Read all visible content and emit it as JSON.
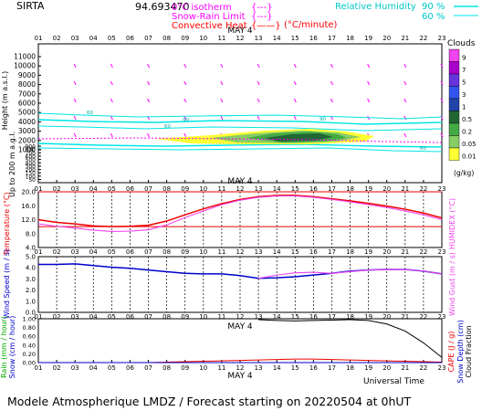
{
  "header": {
    "site": "SIRTA",
    "code": "94.693470",
    "legend": [
      {
        "label": "0°C isotherm",
        "sym": "{---}",
        "color": "#ff00ff"
      },
      {
        "label": "Snow-Rain Limit",
        "sym": "{---}",
        "color": "#ff00ff"
      },
      {
        "label": "Convective Heat",
        "sym": "{——}",
        "color": "#ff0000"
      }
    ],
    "convective_unit": "(°C/minute)",
    "rh_label": "Relative Humidity",
    "rh_levels": [
      "90 %",
      "60 %"
    ],
    "rh_color": "#00e5e5"
  },
  "hours": [
    "01",
    "02",
    "03",
    "04",
    "05",
    "06",
    "07",
    "08",
    "09",
    "10",
    "11",
    "12",
    "13",
    "14",
    "15",
    "16",
    "17",
    "18",
    "19",
    "20",
    "21",
    "22",
    "23"
  ],
  "date_label": "MAY 4",
  "footer": {
    "time_label": "Universal Time",
    "caption": "Modele Atmospherique LMDZ / Forecast starting on 20220504 at 0hUT"
  },
  "clouds_legend": {
    "title": "Clouds",
    "unit": "(g/kg)",
    "levels": [
      "9",
      "7",
      "5",
      "3",
      "1",
      "0.5",
      "0.2",
      "0.05",
      "0.01"
    ],
    "colors": [
      "#ee44ee",
      "#aa00cc",
      "#6633dd",
      "#3355ee",
      "#2244aa",
      "#226633",
      "#44aa44",
      "#88cc66",
      "#ffff33"
    ]
  },
  "chart_data": [
    {
      "type": "heatmap",
      "panel": "clouds",
      "ylabel": "Height (m a.s.l.)",
      "ylabel2": "Up to 200 m a.g.l.",
      "y_ticks": [
        "11000",
        "10000",
        "9000",
        "8000",
        "7000",
        "6000",
        "5000",
        "4000",
        "3000",
        "2000",
        "1000",
        "900",
        "800",
        "700",
        "600",
        "500",
        "400",
        "300",
        "200",
        "150",
        "100",
        "50"
      ],
      "rh_contour_labels": [
        "60",
        "90",
        "60",
        "90",
        "60"
      ],
      "cloud_layer": {
        "base_m": 2200,
        "top_m": 3200,
        "max_level": "0.5",
        "hours": [
          "08",
          "20"
        ]
      }
    },
    {
      "type": "line",
      "panel": "temperature",
      "ylabel": "Temperature (°C)",
      "ylabel2": "HUMIDEX (°C)",
      "ylim": [
        4,
        20
      ],
      "y_ticks": [
        "20.0",
        "16.0",
        "12.0",
        "8.0",
        "4.0"
      ],
      "series": [
        {
          "color": "#ee0000",
          "values": [
            12.0,
            11.2,
            10.8,
            10.2,
            10.0,
            10.1,
            10.4,
            11.6,
            13.4,
            15.1,
            16.6,
            17.8,
            18.6,
            19.0,
            19.0,
            18.6,
            18.0,
            17.4,
            16.7,
            15.9,
            15.0,
            13.9,
            12.5
          ]
        },
        {
          "color": "#ee44ee",
          "values": [
            10.8,
            10.1,
            9.6,
            9.0,
            8.6,
            8.7,
            9.1,
            10.5,
            12.6,
            14.5,
            16.3,
            17.6,
            18.4,
            18.8,
            18.8,
            18.4,
            17.8,
            17.1,
            16.3,
            15.5,
            14.5,
            13.4,
            12.0
          ]
        }
      ],
      "reference_lines": [
        10,
        20
      ]
    },
    {
      "type": "line",
      "panel": "wind",
      "ylabel": "Wind Speed (m / s)",
      "ylabel2": "Wind Gust (m / s)",
      "ylim": [
        0,
        5
      ],
      "y_ticks": [
        "5.0",
        "4.0",
        "3.0",
        "2.0",
        "1.0",
        "0.0"
      ],
      "series": [
        {
          "color": "#0000cc",
          "values": [
            4.3,
            4.3,
            4.35,
            4.2,
            4.05,
            3.95,
            3.8,
            3.65,
            3.5,
            3.45,
            3.45,
            3.3,
            3.05,
            3.1,
            3.2,
            3.35,
            3.5,
            3.7,
            3.8,
            3.85,
            3.85,
            3.7,
            3.45
          ]
        },
        {
          "color": "#ee44ee",
          "values": [
            null,
            null,
            null,
            null,
            null,
            null,
            null,
            null,
            null,
            null,
            null,
            null,
            3.05,
            3.35,
            3.55,
            3.6,
            3.5,
            3.65,
            3.8,
            3.85,
            3.85,
            3.7,
            3.45
          ]
        }
      ]
    },
    {
      "type": "line",
      "panel": "precip",
      "ylabel": "Rain (mm / hour)",
      "ylabel2": "Snow (cm / hour)",
      "ylabel3": "CAPE (J / g)",
      "ylabel4": "Snow Depth (cm)",
      "ylabel5": "Cloud Fraction",
      "ylim": [
        0,
        1
      ],
      "y_ticks": [
        "1.00",
        "0.80",
        "0.60",
        "0.40",
        "0.20",
        "0.00"
      ],
      "series": [
        {
          "color": "#000000",
          "values": [
            null,
            null,
            null,
            null,
            null,
            null,
            null,
            null,
            null,
            null,
            null,
            null,
            0.98,
            0.96,
            0.95,
            0.96,
            0.97,
            0.98,
            0.96,
            0.88,
            0.72,
            0.45,
            0.12
          ]
        },
        {
          "color": "#ee0000",
          "values": [
            0,
            0,
            0,
            0,
            0,
            0,
            0,
            0.01,
            0.02,
            0.03,
            0.04,
            0.05,
            0.06,
            0.07,
            0.08,
            0.08,
            0.07,
            0.06,
            0.05,
            0.04,
            0.03,
            0.02,
            0.01
          ]
        },
        {
          "color": "#0000cc",
          "values": [
            0,
            0,
            0,
            0,
            0,
            0,
            0,
            0,
            0,
            0,
            0,
            0,
            0,
            0,
            0,
            0,
            0,
            0,
            0,
            0,
            0,
            0,
            0
          ]
        }
      ]
    }
  ]
}
